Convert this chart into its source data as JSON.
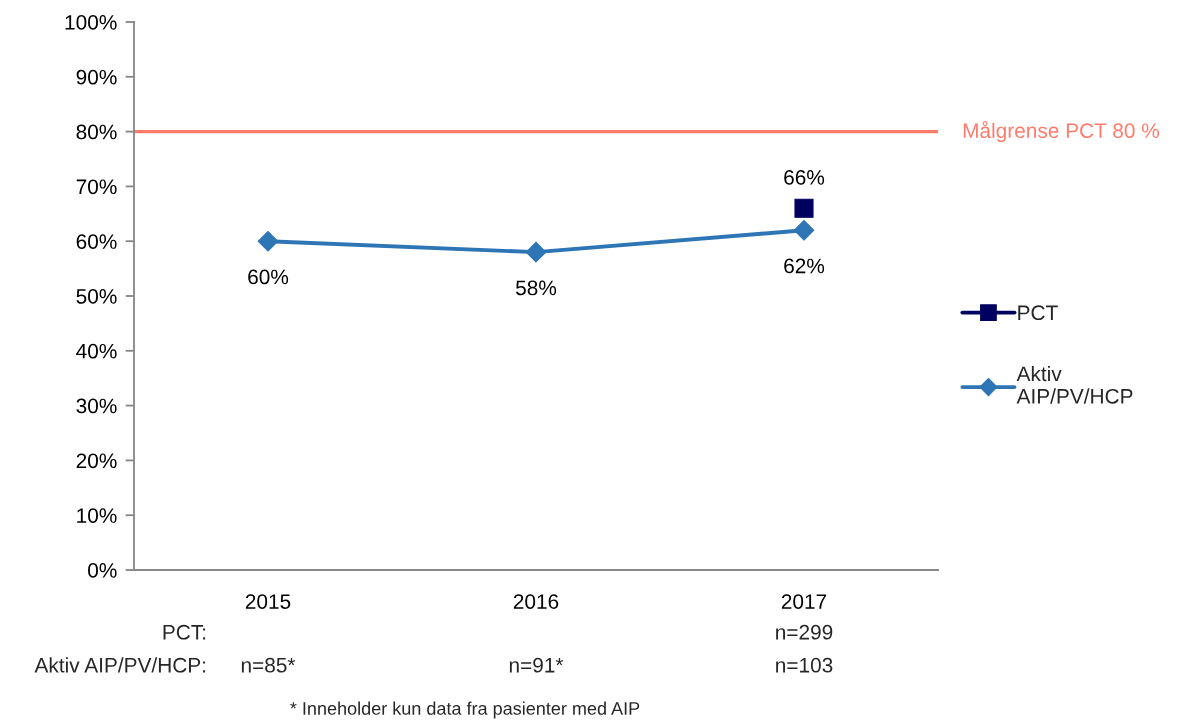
{
  "chart_data": {
    "type": "line",
    "categories": [
      "2015",
      "2016",
      "2017"
    ],
    "series": [
      {
        "name": "PCT",
        "color": "#000060",
        "marker": "square",
        "values": [
          null,
          null,
          66
        ],
        "value_labels": [
          null,
          null,
          "66%"
        ]
      },
      {
        "name": "Aktiv AIP/PV/HCP",
        "color": "#2e75b6",
        "marker": "diamond",
        "values": [
          60,
          58,
          62
        ],
        "value_labels": [
          "60%",
          "58%",
          "62%"
        ]
      }
    ],
    "ylim": [
      0,
      100
    ],
    "yticks": [
      {
        "value": 0,
        "label": "0%"
      },
      {
        "value": 10,
        "label": "10%"
      },
      {
        "value": 20,
        "label": "20%"
      },
      {
        "value": 30,
        "label": "30%"
      },
      {
        "value": 40,
        "label": "40%"
      },
      {
        "value": 50,
        "label": "50%"
      },
      {
        "value": 60,
        "label": "60%"
      },
      {
        "value": 70,
        "label": "70%"
      },
      {
        "value": 80,
        "label": "80%"
      },
      {
        "value": 90,
        "label": "90%"
      },
      {
        "value": 100,
        "label": "100%"
      }
    ],
    "ref_lines": [
      {
        "axis": "y",
        "value": 80,
        "label": "Målgrense PCT 80 %",
        "color": "#ff7b6b",
        "line_style": "solid"
      }
    ],
    "annotations": [
      "PCT:",
      "Aktiv AIP/PV/HCP:",
      "n=299",
      "n=85*",
      "n=91*",
      "n=103",
      "* Inneholder kun data fra pasienter med AIP"
    ],
    "grid": false,
    "legend": "right",
    "line_style": "solid"
  }
}
